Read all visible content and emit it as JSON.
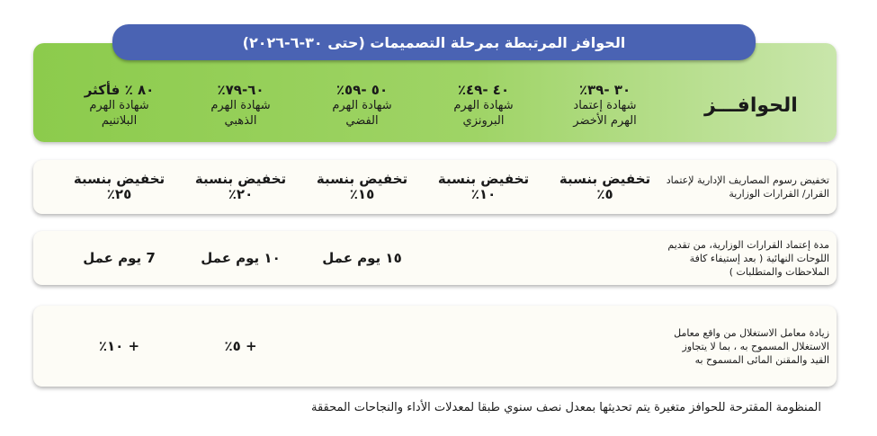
{
  "title": "الحوافز المرتبطة بمرحلة التصميمات (حتى ٣٠-٦-٢٠٢٦)",
  "header": {
    "label": "الحوافـــز",
    "tiers": [
      {
        "range": "٣٠ -٣٩٪",
        "name": "شهادة إعتماد الهرم الأخضر"
      },
      {
        "range": "٤٠ -٤٩٪",
        "name": "شهادة الهرم البرونزي"
      },
      {
        "range": "٥٠ -٥٩٪",
        "name": "شهادة الهرم الفضي"
      },
      {
        "range": "٦٠-٧٩٪",
        "name": "شهادة الهرم الذهبي"
      },
      {
        "range": "٨٠ ٪ فأكثر",
        "name": "شهادة الهرم البلاتنيم"
      }
    ]
  },
  "rows": [
    {
      "label": "تخفيض رسوم المصاريف الإدارية لإعتماد القرار/ القرارات الوزارية",
      "cells": [
        {
          "line1": "تخفيض بنسبة",
          "line2": "٥٪"
        },
        {
          "line1": "تخفيض بنسبة",
          "line2": "١٠٪"
        },
        {
          "line1": "تخفيض بنسبة",
          "line2": "١٥٪"
        },
        {
          "line1": "تخفيض بنسبة",
          "line2": "٢٠٪"
        },
        {
          "line1": "تخفيض بنسبة",
          "line2": "٢٥٪"
        }
      ]
    },
    {
      "label": "مدة إعتماد القرارات الوزارية، من تقديم اللوحات النهائية ( بعد إستيفاء كافة الملاحظات والمتطلبات )",
      "cells": [
        "",
        "",
        "١٥ يوم عمل",
        "١٠ يوم عمل",
        "7 يوم عمل"
      ]
    },
    {
      "label": "زيادة معامل الاستغلال من واقع معامل الاستغلال المسموح به ، بما لا يتجاوز القيد والمقنن المائى المسموح به",
      "cells": [
        "",
        "",
        "",
        "+ ٥٪",
        "+ ١٠٪"
      ]
    }
  ],
  "footnote": "المنظومة المقترحة للحوافز متغيرة يتم تحديثها بمعدل نصف سنوي طبقا لمعدلات الأداء والنجاحات المحققة",
  "colors": {
    "title_bg": "#4a63b3",
    "panel_green": "#8ccb4c",
    "row_bg": "#fdfcf6"
  }
}
